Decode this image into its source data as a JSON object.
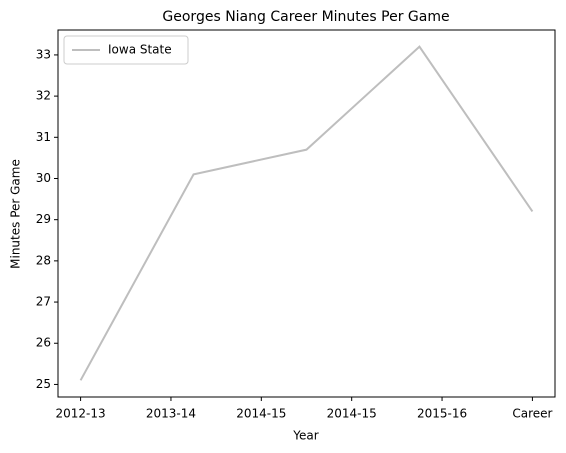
{
  "chart_data": {
    "type": "line",
    "title": "Georges Niang Career Minutes Per Game",
    "xlabel": "Year",
    "ylabel": "Minutes Per Game",
    "x": [
      0,
      1,
      2,
      3,
      4
    ],
    "series": [
      {
        "name": "Iowa State",
        "color": "#bebebe",
        "values": [
          25.1,
          30.1,
          30.7,
          33.2,
          29.2
        ]
      }
    ],
    "xlim": [
      -0.2,
      4.2
    ],
    "xticks": [
      {
        "value": 0,
        "label": "2012-13"
      },
      {
        "value": 0.8,
        "label": "2013-14"
      },
      {
        "value": 1.6,
        "label": "2014-15"
      },
      {
        "value": 2.4,
        "label": "2014-15"
      },
      {
        "value": 3.2,
        "label": "2015-16"
      },
      {
        "value": 4,
        "label": "Career"
      }
    ],
    "ylim": [
      24.695,
      33.605
    ],
    "yticks": [
      25,
      26,
      27,
      28,
      29,
      30,
      31,
      32,
      33
    ],
    "legend": "upper left",
    "grid": false
  }
}
